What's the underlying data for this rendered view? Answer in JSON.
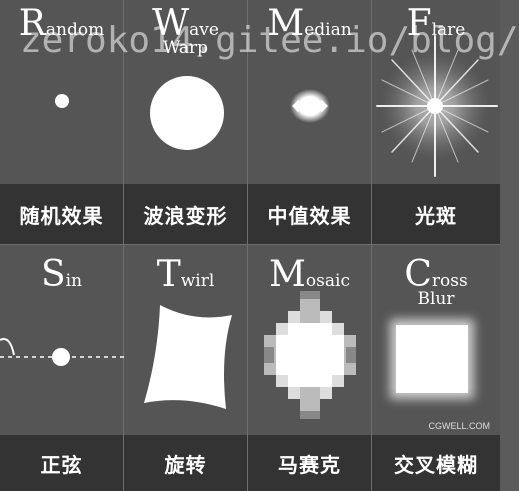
{
  "tiles": [
    {
      "name": "random",
      "title_cap": "R",
      "title_rest": "andom",
      "subtitle": "",
      "caption": "随机效果"
    },
    {
      "name": "wave-warp",
      "title_cap": "W",
      "title_rest": "ave",
      "subtitle": "Warp",
      "caption": "波浪变形"
    },
    {
      "name": "median",
      "title_cap": "M",
      "title_rest": "edian",
      "subtitle": "",
      "caption": "中值效果"
    },
    {
      "name": "flare",
      "title_cap": "F",
      "title_rest": "lare",
      "subtitle": "",
      "caption": "光斑"
    },
    {
      "name": "sin",
      "title_cap": "S",
      "title_rest": "in",
      "subtitle": "",
      "caption": "正弦"
    },
    {
      "name": "twirl",
      "title_cap": "T",
      "title_rest": "wirl",
      "subtitle": "",
      "caption": "旋转"
    },
    {
      "name": "mosaic",
      "title_cap": "M",
      "title_rest": "osaic",
      "subtitle": "",
      "caption": "马赛克"
    },
    {
      "name": "cross-blur",
      "title_cap": "C",
      "title_rest": "ross",
      "subtitle": "Blur",
      "caption": "交叉模糊"
    }
  ],
  "watermark": "zeroko14.gitee.io/blog/",
  "corner_mark": "CGWELL.COM"
}
